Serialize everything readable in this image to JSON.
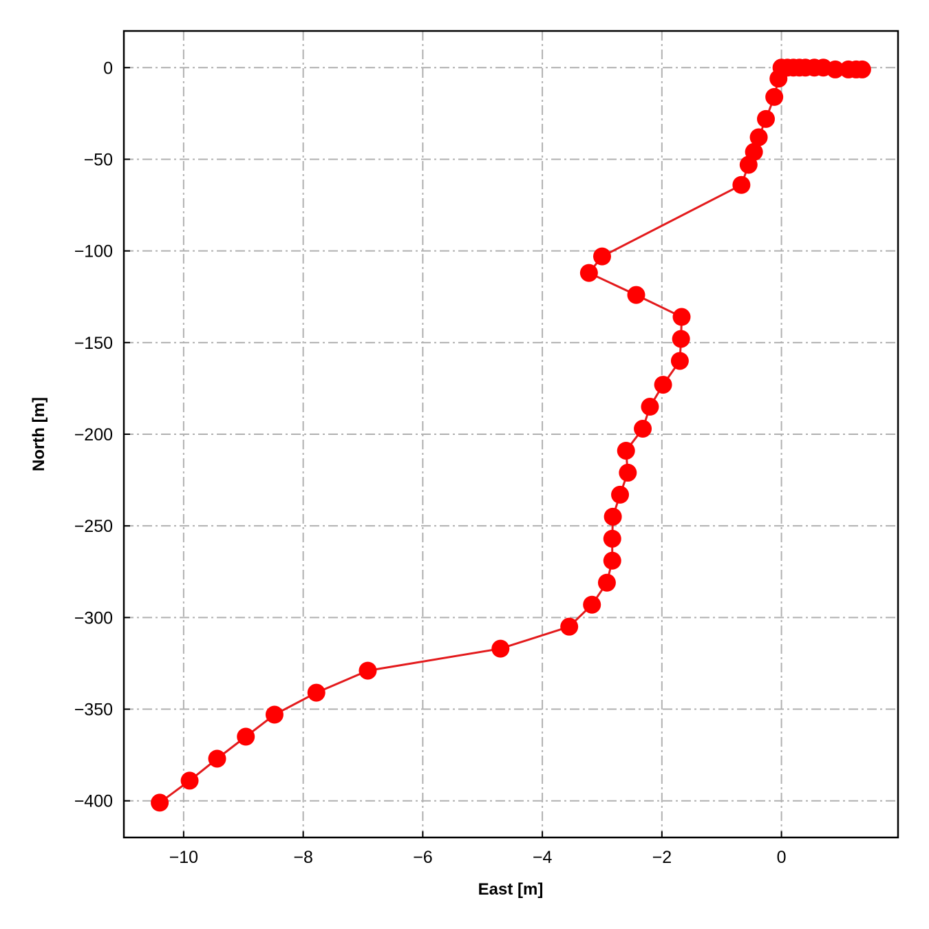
{
  "chart_data": {
    "type": "line",
    "title": "",
    "xlabel": "East [m]",
    "ylabel": "North [m]",
    "xlim": [
      -11.0,
      1.95
    ],
    "ylim": [
      -420,
      20
    ],
    "xticks": [
      -10,
      -8,
      -6,
      -4,
      -2,
      0
    ],
    "yticks": [
      0,
      -50,
      -100,
      -150,
      -200,
      -250,
      -300,
      -350,
      -400
    ],
    "xtick_labels": [
      "−10",
      "−8",
      "−6",
      "−4",
      "−2",
      "0"
    ],
    "ytick_labels": [
      "0",
      "−50",
      "−100",
      "−150",
      "−200",
      "−250",
      "−300",
      "−350",
      "−400"
    ],
    "grid": true,
    "grid_style": "dash-dot",
    "series": [
      {
        "color": "#ff0000",
        "line_color": "#e31a1c",
        "marker": "circle",
        "x": [
          1.35,
          1.25,
          1.12,
          0.9,
          0.7,
          0.55,
          0.4,
          0.3,
          0.2,
          0.1,
          0.0,
          -0.05,
          -0.12,
          -0.26,
          -0.38,
          -0.46,
          -0.55,
          -0.67,
          -3.0,
          -3.22,
          -2.43,
          -1.67,
          -1.68,
          -1.7,
          -1.98,
          -2.2,
          -2.32,
          -2.6,
          -2.57,
          -2.7,
          -2.82,
          -2.83,
          -2.83,
          -2.92,
          -3.17,
          -3.55,
          -4.7,
          -6.92,
          -7.78,
          -8.48,
          -8.96,
          -9.44,
          -9.9,
          -10.4
        ],
        "y": [
          -1,
          -1,
          -1,
          -1,
          0,
          0,
          0,
          0,
          0,
          0,
          0,
          -6,
          -16,
          -28,
          -38,
          -46,
          -53,
          -64,
          -103,
          -112,
          -124,
          -136,
          -148,
          -160,
          -173,
          -185,
          -197,
          -209,
          -221,
          -233,
          -245,
          -257,
          -269,
          -281,
          -293,
          -305,
          -317,
          -329,
          -341,
          -353,
          -365,
          -377,
          -389,
          -401
        ]
      }
    ]
  }
}
